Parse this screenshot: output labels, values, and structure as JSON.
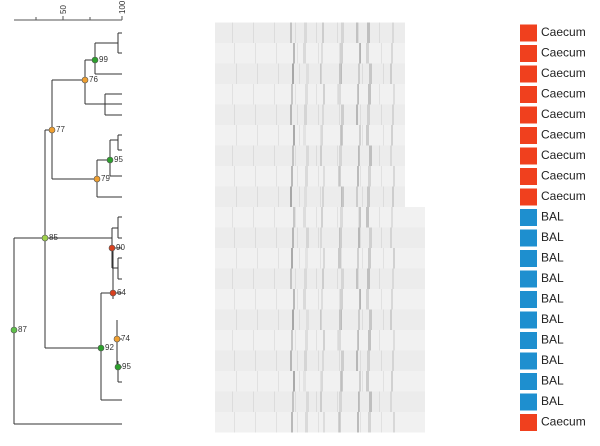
{
  "scale": {
    "ticks": [
      "50",
      "100"
    ]
  },
  "nodes": [
    {
      "label": "99"
    },
    {
      "label": "76"
    },
    {
      "label": "77"
    },
    {
      "label": "95"
    },
    {
      "label": "79"
    },
    {
      "label": "85"
    },
    {
      "label": "90"
    },
    {
      "label": "64"
    },
    {
      "label": "92"
    },
    {
      "label": "74"
    },
    {
      "label": "95"
    },
    {
      "label": "87"
    }
  ],
  "lanes": [
    {
      "label": "Caecum",
      "color": "#f0401e"
    },
    {
      "label": "Caecum",
      "color": "#f0401e"
    },
    {
      "label": "Caecum",
      "color": "#f0401e"
    },
    {
      "label": "Caecum",
      "color": "#f0401e"
    },
    {
      "label": "Caecum",
      "color": "#f0401e"
    },
    {
      "label": "Caecum",
      "color": "#f0401e"
    },
    {
      "label": "Caecum",
      "color": "#f0401e"
    },
    {
      "label": "Caecum",
      "color": "#f0401e"
    },
    {
      "label": "Caecum",
      "color": "#f0401e"
    },
    {
      "label": "BAL",
      "color": "#1e8fcf"
    },
    {
      "label": "BAL",
      "color": "#1e8fcf"
    },
    {
      "label": "BAL",
      "color": "#1e8fcf"
    },
    {
      "label": "BAL",
      "color": "#1e8fcf"
    },
    {
      "label": "BAL",
      "color": "#1e8fcf"
    },
    {
      "label": "BAL",
      "color": "#1e8fcf"
    },
    {
      "label": "BAL",
      "color": "#1e8fcf"
    },
    {
      "label": "BAL",
      "color": "#1e8fcf"
    },
    {
      "label": "BAL",
      "color": "#1e8fcf"
    },
    {
      "label": "BAL",
      "color": "#1e8fcf"
    },
    {
      "label": "Caecum",
      "color": "#f0401e"
    }
  ]
}
